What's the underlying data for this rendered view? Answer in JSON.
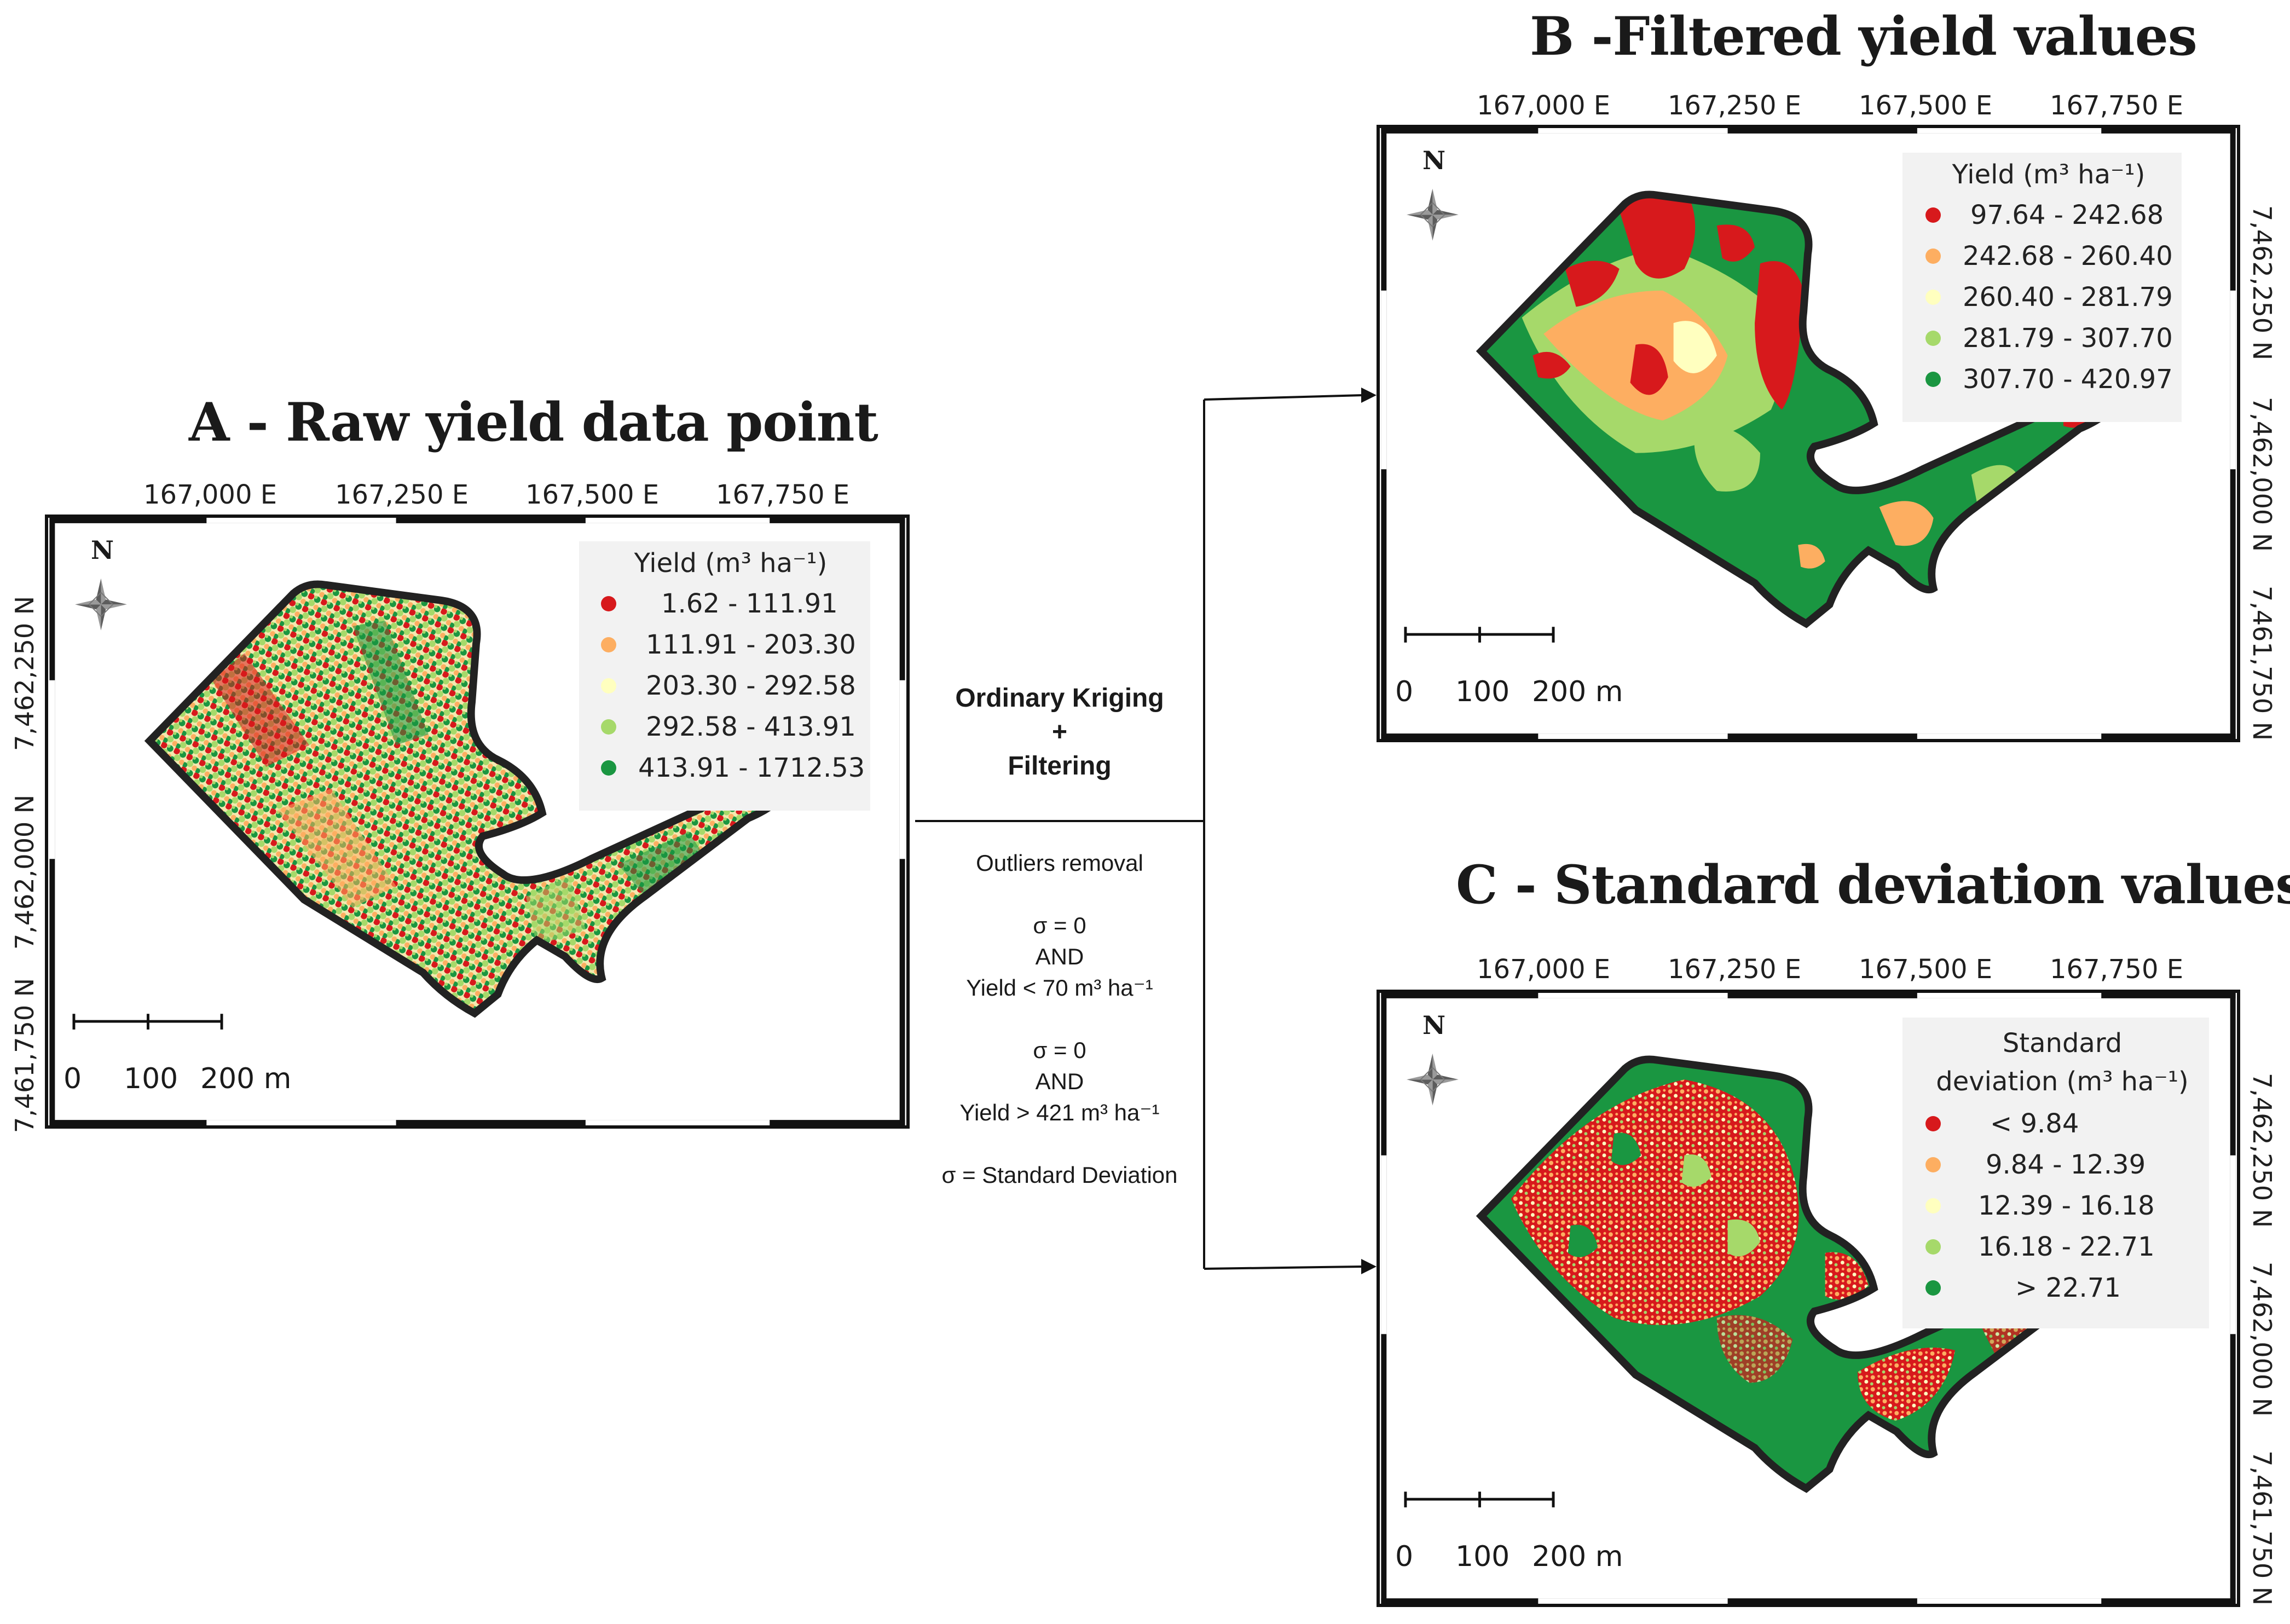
{
  "panels": {
    "a": {
      "title": "A - Raw yield data point",
      "top_labels": [
        "167,000 E",
        "167,250 E",
        "167,500 E",
        "167,750 E"
      ],
      "left_labels": [
        "7,462,250 N",
        "7,462,000 N",
        "7,461,750 N"
      ],
      "legend_title": "Yield (m³ ha⁻¹)",
      "legend": [
        {
          "label": "1.62 - 111.91",
          "color": "#d7191c"
        },
        {
          "label": "111.91 - 203.30",
          "color": "#fdae61"
        },
        {
          "label": "203.30 - 292.58",
          "color": "#ffffbf"
        },
        {
          "label": "292.58 - 413.91",
          "color": "#a6d96a"
        },
        {
          "label": "413.91 - 1712.53",
          "color": "#1a9641"
        }
      ]
    },
    "b": {
      "title": "B -Filtered yield values",
      "top_labels": [
        "167,000 E",
        "167,250 E",
        "167,500 E",
        "167,750 E"
      ],
      "right_labels": [
        "7,462,250 N",
        "7,462,000 N",
        "7,461,750 N"
      ],
      "legend_title": "Yield (m³ ha⁻¹)",
      "legend": [
        {
          "label": "97.64 - 242.68",
          "color": "#d7191c"
        },
        {
          "label": "242.68 - 260.40",
          "color": "#fdae61"
        },
        {
          "label": "260.40 - 281.79",
          "color": "#ffffbf"
        },
        {
          "label": "281.79 - 307.70",
          "color": "#a6d96a"
        },
        {
          "label": "307.70 - 420.97",
          "color": "#1a9641"
        }
      ]
    },
    "c": {
      "title": "C - Standard deviation values",
      "top_labels": [
        "167,000 E",
        "167,250 E",
        "167,500 E",
        "167,750 E"
      ],
      "right_labels": [
        "7,462,250 N",
        "7,462,000 N",
        "7,461,750 N"
      ],
      "legend_title_1": "Standard",
      "legend_title_2": "deviation (m³ ha⁻¹)",
      "legend": [
        {
          "label": "< 9.84",
          "color": "#d7191c"
        },
        {
          "label": "9.84 - 12.39",
          "color": "#fdae61"
        },
        {
          "label": "12.39 - 16.18",
          "color": "#ffffbf"
        },
        {
          "label": "16.18 - 22.71",
          "color": "#a6d96a"
        },
        {
          "label": "> 22.71",
          "color": "#1a9641"
        }
      ]
    }
  },
  "north_label": "N",
  "scale_labels": [
    "0",
    "100",
    "200 m"
  ],
  "method": {
    "title_1": "Ordinary Kriging",
    "title_2": "+",
    "title_3": "Filtering",
    "outliers": "Outliers removal",
    "rule1_sigma": "σ = 0",
    "rule1_and": "AND",
    "rule1_yield": "Yield < 70 m³ ha⁻¹",
    "rule2_sigma": "σ = 0",
    "rule2_and": "AND",
    "rule2_yield": "Yield > 421 m³ ha⁻¹",
    "note": "σ = Standard Deviation"
  }
}
